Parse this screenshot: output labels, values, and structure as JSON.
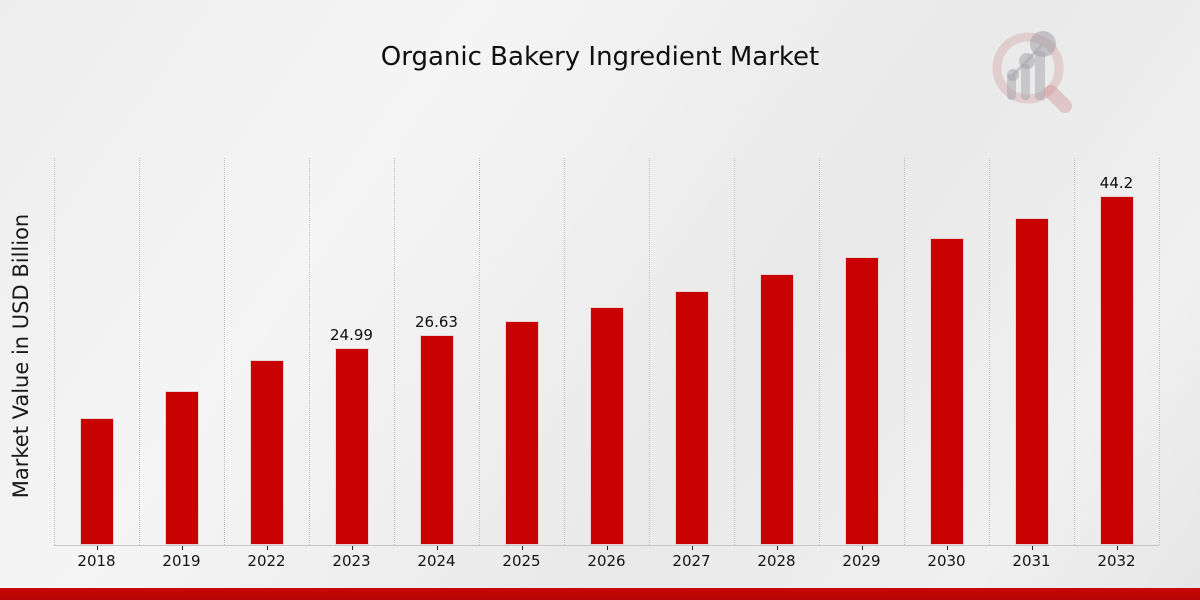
{
  "chart": {
    "title": "Organic Bakery Ingredient Market",
    "ylabel": "Market Value in USD Billion"
  },
  "chart_data": {
    "type": "bar",
    "title": "Organic Bakery Ingredient Market",
    "xlabel": "",
    "ylabel": "Market Value in USD Billion",
    "categories": [
      "2018",
      "2019",
      "2022",
      "2023",
      "2024",
      "2025",
      "2026",
      "2027",
      "2028",
      "2029",
      "2030",
      "2031",
      "2032"
    ],
    "values": [
      16.1,
      19.5,
      23.46,
      24.99,
      26.63,
      28.37,
      30.23,
      32.21,
      34.31,
      36.56,
      38.95,
      41.5,
      44.2
    ],
    "data_labels": [
      "",
      "",
      "",
      "24.99",
      "26.63",
      "",
      "",
      "",
      "",
      "",
      "",
      "",
      "44.2"
    ],
    "ylim": [
      0,
      48
    ],
    "grid": "vertical-dotted",
    "legend": "none",
    "bar_color": "#c80101"
  },
  "colors": {
    "bar": "#c80101",
    "bottom_band_top": "#c90808",
    "bottom_band_bottom": "#b40404",
    "background": "#ededed",
    "gridline": "#bfbfbf",
    "axis_line": "#c6c6c6",
    "text": "#101010"
  },
  "branding": {
    "watermark": "magnifier-bar-chart-logo"
  }
}
